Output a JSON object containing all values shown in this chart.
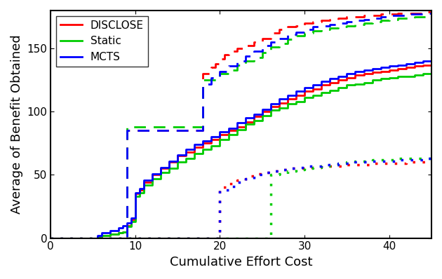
{
  "title": "",
  "xlabel": "Cumulative Effort Cost",
  "ylabel": "Average of Benefit Obtained",
  "xlim": [
    0,
    45
  ],
  "ylim": [
    0,
    180
  ],
  "xticks": [
    0,
    10,
    20,
    30,
    40
  ],
  "yticks": [
    0,
    50,
    100,
    150
  ],
  "legend_labels": [
    "DISCLOSE",
    "Static",
    "MCTS"
  ],
  "colors": {
    "DISCLOSE": "#ff0000",
    "Static": "#00cc00",
    "MCTS": "#0000ff"
  },
  "solid": {
    "DISCLOSE": {
      "x": [
        0,
        5,
        5.5,
        6,
        7,
        8,
        8.5,
        9,
        9.5,
        10,
        10.5,
        11,
        12,
        13,
        14,
        15,
        16,
        17,
        18,
        19,
        20,
        21,
        22,
        23,
        24,
        25,
        26,
        27,
        28,
        29,
        30,
        31,
        32,
        33,
        34,
        35,
        36,
        37,
        38,
        39,
        40,
        41,
        42,
        43,
        44,
        45
      ],
      "y": [
        0,
        0,
        1,
        2,
        3,
        4,
        5,
        10,
        15,
        35,
        38,
        44,
        50,
        55,
        60,
        65,
        68,
        72,
        75,
        78,
        82,
        85,
        88,
        92,
        96,
        100,
        104,
        107,
        110,
        113,
        116,
        118,
        121,
        123,
        125,
        127,
        129,
        130,
        131,
        132,
        133,
        134,
        135,
        136,
        137,
        138
      ]
    },
    "Static": {
      "x": [
        0,
        5,
        5.5,
        6,
        7,
        8,
        8.5,
        9,
        9.5,
        10,
        10.5,
        11,
        12,
        13,
        14,
        15,
        16,
        17,
        18,
        19,
        20,
        21,
        22,
        23,
        24,
        25,
        26,
        27,
        28,
        29,
        30,
        31,
        32,
        33,
        34,
        35,
        36,
        37,
        38,
        39,
        40,
        41,
        42,
        43,
        44,
        45
      ],
      "y": [
        0,
        0,
        1,
        2,
        3,
        4,
        5,
        9,
        13,
        33,
        36,
        42,
        47,
        52,
        55,
        60,
        63,
        67,
        70,
        73,
        78,
        82,
        86,
        90,
        93,
        97,
        101,
        103,
        106,
        108,
        111,
        113,
        115,
        117,
        119,
        121,
        122,
        123,
        125,
        126,
        127,
        128,
        128,
        129,
        130,
        130
      ]
    },
    "MCTS": {
      "x": [
        0,
        5,
        5.5,
        6,
        7,
        8,
        8.5,
        9,
        9.5,
        10,
        10.5,
        11,
        12,
        13,
        14,
        15,
        16,
        17,
        18,
        19,
        20,
        21,
        22,
        23,
        24,
        25,
        26,
        27,
        28,
        29,
        30,
        31,
        32,
        33,
        34,
        35,
        36,
        37,
        38,
        39,
        40,
        41,
        42,
        43,
        44,
        45
      ],
      "y": [
        0,
        0,
        2,
        4,
        6,
        8,
        10,
        12,
        16,
        36,
        39,
        46,
        51,
        56,
        61,
        66,
        70,
        74,
        77,
        80,
        84,
        87,
        91,
        95,
        98,
        102,
        106,
        110,
        113,
        116,
        119,
        121,
        124,
        126,
        128,
        130,
        132,
        133,
        134,
        135,
        136,
        137,
        138,
        139,
        140,
        142
      ]
    }
  },
  "dashed": {
    "DISCLOSE": {
      "x": [
        0,
        9,
        9,
        18,
        18,
        19,
        19.5,
        20,
        20.5,
        21,
        22,
        23,
        24,
        25,
        26,
        27,
        28,
        29,
        30,
        31,
        32,
        33,
        34,
        35,
        36,
        37,
        38,
        39,
        40,
        41,
        42,
        43,
        44,
        45
      ],
      "y": [
        0,
        0,
        85,
        85,
        130,
        135,
        138,
        142,
        145,
        148,
        150,
        152,
        155,
        158,
        162,
        165,
        167,
        168,
        170,
        171,
        172,
        173,
        174,
        175,
        175,
        176,
        176,
        177,
        177,
        178,
        178,
        178,
        179,
        179
      ]
    },
    "Static": {
      "x": [
        0,
        9,
        9,
        18,
        18,
        20,
        21,
        22,
        23,
        24,
        25,
        26,
        27,
        28,
        29,
        30,
        31,
        32,
        33,
        34,
        35,
        36,
        37,
        38,
        39,
        40,
        41,
        42,
        43,
        44,
        45
      ],
      "y": [
        0,
        0,
        88,
        88,
        125,
        130,
        133,
        137,
        140,
        143,
        147,
        151,
        154,
        157,
        160,
        162,
        164,
        165,
        166,
        167,
        168,
        169,
        170,
        171,
        172,
        173,
        174,
        174,
        175,
        175,
        176
      ]
    },
    "MCTS": {
      "x": [
        0,
        9,
        9,
        18,
        18,
        19,
        20,
        21,
        22,
        23,
        24,
        25,
        26,
        27,
        28,
        29,
        30,
        31,
        32,
        33,
        34,
        35,
        36,
        37,
        38,
        39,
        40,
        41,
        42,
        43,
        44,
        45
      ],
      "y": [
        0,
        0,
        85,
        85,
        122,
        127,
        132,
        136,
        140,
        144,
        148,
        152,
        155,
        158,
        161,
        163,
        165,
        167,
        168,
        169,
        170,
        171,
        172,
        173,
        174,
        175,
        176,
        176,
        177,
        177,
        178,
        178
      ]
    }
  },
  "dotted": {
    "DISCLOSE": {
      "x": [
        0,
        20,
        20,
        21,
        22,
        23,
        24,
        25,
        26,
        27,
        28,
        29,
        30,
        31,
        32,
        33,
        34,
        35,
        36,
        37,
        38,
        39,
        40,
        41,
        42,
        43,
        44,
        45
      ],
      "y": [
        0,
        0,
        40,
        43,
        46,
        49,
        51,
        52,
        53,
        54,
        55,
        55,
        56,
        56,
        57,
        57,
        57,
        58,
        58,
        58,
        59,
        59,
        59,
        59,
        60,
        60,
        60,
        61
      ]
    },
    "Static": {
      "x": [
        0,
        26,
        26,
        27,
        28,
        29,
        30,
        31,
        32,
        33,
        34,
        35,
        36,
        37,
        38,
        39,
        40,
        41,
        42,
        43,
        44,
        45
      ],
      "y": [
        0,
        0,
        50,
        51,
        53,
        54,
        55,
        56,
        57,
        58,
        59,
        60,
        61,
        61,
        62,
        62,
        62,
        63,
        63,
        63,
        63,
        63
      ]
    },
    "MCTS": {
      "x": [
        0,
        20,
        20,
        21,
        22,
        23,
        24,
        25,
        26,
        27,
        28,
        29,
        30,
        31,
        32,
        33,
        34,
        35,
        36,
        37,
        38,
        39,
        40,
        41,
        42,
        43,
        44,
        45
      ],
      "y": [
        0,
        0,
        38,
        41,
        44,
        47,
        50,
        52,
        53,
        54,
        55,
        56,
        57,
        57,
        58,
        58,
        59,
        59,
        60,
        60,
        61,
        61,
        61,
        62,
        62,
        62,
        63,
        63
      ]
    }
  }
}
